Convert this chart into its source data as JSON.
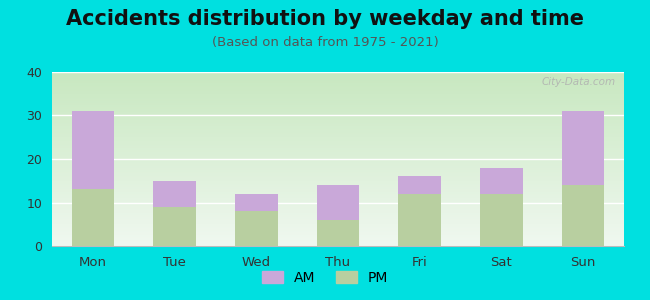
{
  "title": "Accidents distribution by weekday and time",
  "subtitle": "(Based on data from 1975 - 2021)",
  "categories": [
    "Mon",
    "Tue",
    "Wed",
    "Thu",
    "Fri",
    "Sat",
    "Sun"
  ],
  "pm_values": [
    13,
    9,
    8,
    6,
    12,
    12,
    14
  ],
  "am_values": [
    18,
    6,
    4,
    8,
    4,
    6,
    17
  ],
  "am_color": "#c9a8d9",
  "pm_color": "#b8cfa0",
  "bg_color": "#00e0e0",
  "grad_bottom": "#c8e8c0",
  "grad_top": "#f0f8f0",
  "ylim": [
    0,
    40
  ],
  "yticks": [
    0,
    10,
    20,
    30,
    40
  ],
  "title_fontsize": 15,
  "subtitle_fontsize": 9.5,
  "legend_fontsize": 10,
  "bar_width": 0.52,
  "watermark_text": "City-Data.com"
}
